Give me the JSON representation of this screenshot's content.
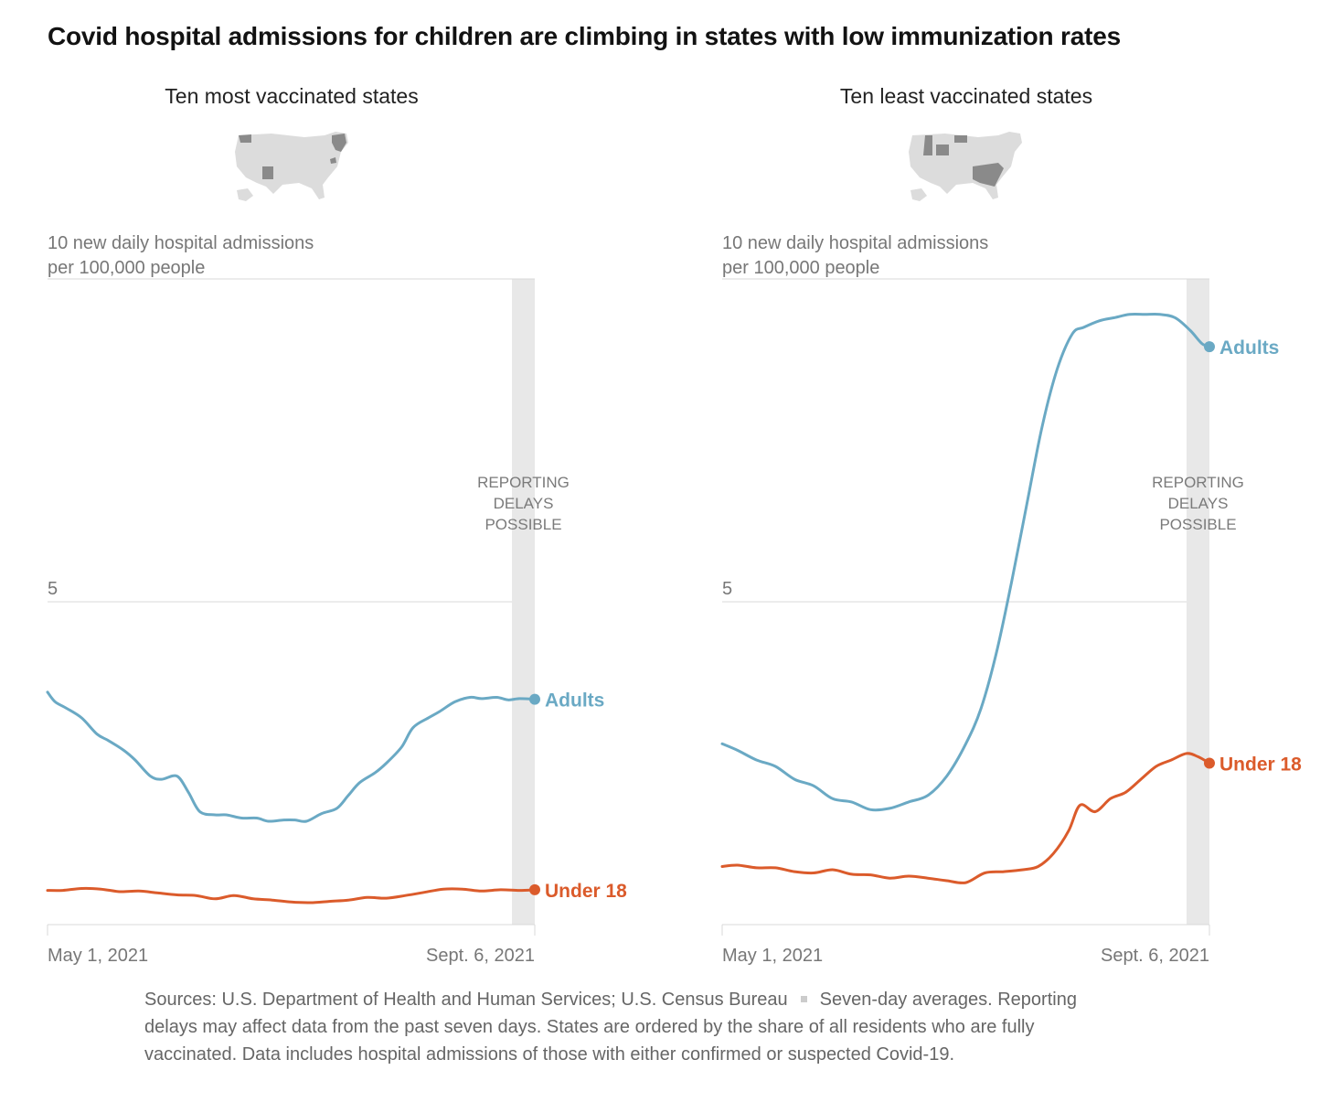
{
  "title": "Covid hospital admissions for children are climbing in states with low immunization rates",
  "footnote": {
    "sources": "Sources: U.S. Department of Health and Human Services; U.S. Census Bureau",
    "note": "Seven-day averages. Reporting delays may affect data from the past seven days. States are ordered by the share of all residents who are fully vaccinated. Data includes hospital admissions of those with either confirmed or suspected Covid-19."
  },
  "colors": {
    "adults": "#6aa9c4",
    "under18": "#db5b2b",
    "grid": "#d9d9d9",
    "band": "#e8e8e8",
    "axis_text": "#777777",
    "map_land": "#dcdcdc",
    "map_highlight": "#8a8a8a"
  },
  "chart_data": [
    {
      "type": "line",
      "title": "Ten most vaccinated states",
      "ylabel": "10 new daily hospital admissions per 100,000 people",
      "ylabel_lines": [
        "10 new daily hospital admissions",
        "per 100,000 people"
      ],
      "ylim": [
        0,
        10
      ],
      "y_ticks": [
        5
      ],
      "x_tick_labels": [
        "May 1, 2021",
        "Sept. 6, 2021"
      ],
      "xlim": [
        "2021-05-01",
        "2021-09-06"
      ],
      "annotation": [
        "REPORTING",
        "DELAYS",
        "POSSIBLE"
      ],
      "annotation_range": [
        "2021-08-31",
        "2021-09-06"
      ],
      "series": [
        {
          "name": "Adults",
          "key": "adults",
          "x": [
            "2021-05-01",
            "2021-05-03",
            "2021-05-06",
            "2021-05-10",
            "2021-05-14",
            "2021-05-17",
            "2021-05-21",
            "2021-05-24",
            "2021-05-28",
            "2021-05-31",
            "2021-06-04",
            "2021-06-07",
            "2021-06-10",
            "2021-06-14",
            "2021-06-17",
            "2021-06-21",
            "2021-06-25",
            "2021-06-28",
            "2021-07-02",
            "2021-07-05",
            "2021-07-08",
            "2021-07-12",
            "2021-07-16",
            "2021-07-19",
            "2021-07-22",
            "2021-07-26",
            "2021-07-29",
            "2021-08-02",
            "2021-08-05",
            "2021-08-09",
            "2021-08-12",
            "2021-08-16",
            "2021-08-20",
            "2021-08-23",
            "2021-08-27",
            "2021-08-30",
            "2021-09-02",
            "2021-09-06"
          ],
          "values": [
            3.6,
            3.45,
            3.35,
            3.2,
            2.95,
            2.85,
            2.7,
            2.55,
            2.3,
            2.25,
            2.3,
            2.05,
            1.75,
            1.7,
            1.7,
            1.65,
            1.65,
            1.6,
            1.62,
            1.62,
            1.6,
            1.72,
            1.8,
            2.0,
            2.2,
            2.35,
            2.5,
            2.75,
            3.05,
            3.2,
            3.3,
            3.45,
            3.52,
            3.5,
            3.52,
            3.48,
            3.5,
            3.49
          ]
        },
        {
          "name": "Under 18",
          "key": "under18",
          "x": [
            "2021-05-01",
            "2021-05-05",
            "2021-05-10",
            "2021-05-15",
            "2021-05-20",
            "2021-05-25",
            "2021-05-30",
            "2021-06-04",
            "2021-06-09",
            "2021-06-14",
            "2021-06-19",
            "2021-06-24",
            "2021-06-29",
            "2021-07-04",
            "2021-07-09",
            "2021-07-14",
            "2021-07-19",
            "2021-07-24",
            "2021-07-29",
            "2021-08-03",
            "2021-08-08",
            "2021-08-13",
            "2021-08-18",
            "2021-08-23",
            "2021-08-28",
            "2021-09-02",
            "2021-09-06"
          ],
          "values": [
            0.53,
            0.53,
            0.56,
            0.55,
            0.51,
            0.52,
            0.49,
            0.46,
            0.45,
            0.4,
            0.45,
            0.4,
            0.38,
            0.35,
            0.34,
            0.36,
            0.38,
            0.42,
            0.41,
            0.45,
            0.5,
            0.55,
            0.55,
            0.52,
            0.54,
            0.53,
            0.54
          ]
        }
      ]
    },
    {
      "type": "line",
      "title": "Ten least vaccinated states",
      "ylabel": "10 new daily hospital admissions per 100,000 people",
      "ylabel_lines": [
        "10 new daily hospital admissions",
        "per 100,000 people"
      ],
      "ylim": [
        0,
        10
      ],
      "y_ticks": [
        5
      ],
      "x_tick_labels": [
        "May 1, 2021",
        "Sept. 6, 2021"
      ],
      "xlim": [
        "2021-05-01",
        "2021-09-06"
      ],
      "annotation": [
        "REPORTING",
        "DELAYS",
        "POSSIBLE"
      ],
      "annotation_range": [
        "2021-08-31",
        "2021-09-06"
      ],
      "series": [
        {
          "name": "Adults",
          "key": "adults",
          "x": [
            "2021-05-01",
            "2021-05-05",
            "2021-05-10",
            "2021-05-15",
            "2021-05-20",
            "2021-05-25",
            "2021-05-30",
            "2021-06-04",
            "2021-06-09",
            "2021-06-14",
            "2021-06-19",
            "2021-06-24",
            "2021-06-29",
            "2021-07-04",
            "2021-07-08",
            "2021-07-12",
            "2021-07-16",
            "2021-07-20",
            "2021-07-24",
            "2021-07-28",
            "2021-08-01",
            "2021-08-04",
            "2021-08-08",
            "2021-08-12",
            "2021-08-16",
            "2021-08-20",
            "2021-08-24",
            "2021-08-28",
            "2021-09-01",
            "2021-09-04",
            "2021-09-06"
          ],
          "values": [
            2.8,
            2.7,
            2.55,
            2.45,
            2.25,
            2.15,
            1.95,
            1.9,
            1.78,
            1.8,
            1.9,
            2.0,
            2.3,
            2.8,
            3.35,
            4.2,
            5.3,
            6.5,
            7.7,
            8.6,
            9.15,
            9.25,
            9.35,
            9.4,
            9.45,
            9.45,
            9.45,
            9.4,
            9.2,
            9.0,
            8.95
          ]
        },
        {
          "name": "Under 18",
          "key": "under18",
          "x": [
            "2021-05-01",
            "2021-05-05",
            "2021-05-10",
            "2021-05-15",
            "2021-05-20",
            "2021-05-25",
            "2021-05-30",
            "2021-06-04",
            "2021-06-09",
            "2021-06-14",
            "2021-06-19",
            "2021-06-24",
            "2021-06-29",
            "2021-07-04",
            "2021-07-09",
            "2021-07-14",
            "2021-07-19",
            "2021-07-23",
            "2021-07-27",
            "2021-07-31",
            "2021-08-03",
            "2021-08-07",
            "2021-08-11",
            "2021-08-15",
            "2021-08-19",
            "2021-08-23",
            "2021-08-27",
            "2021-08-31",
            "2021-09-03",
            "2021-09-06"
          ],
          "values": [
            0.9,
            0.92,
            0.88,
            0.88,
            0.82,
            0.8,
            0.85,
            0.78,
            0.77,
            0.72,
            0.75,
            0.72,
            0.68,
            0.65,
            0.8,
            0.82,
            0.85,
            0.9,
            1.1,
            1.45,
            1.85,
            1.75,
            1.95,
            2.05,
            2.25,
            2.45,
            2.55,
            2.65,
            2.6,
            2.5
          ]
        }
      ]
    }
  ]
}
